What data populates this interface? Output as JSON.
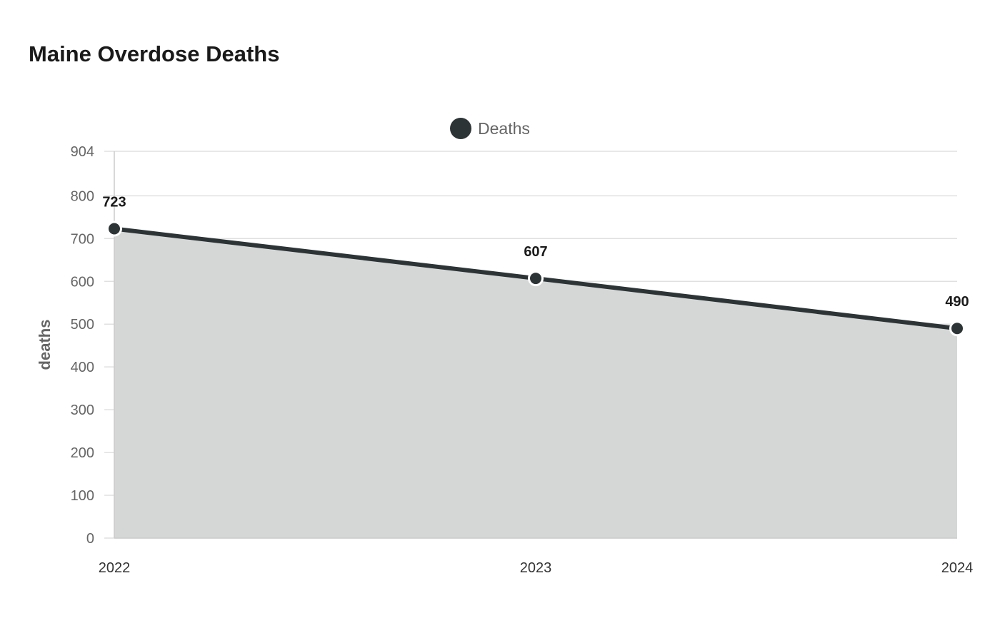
{
  "chart_data": {
    "type": "area",
    "title": "Maine Overdose Deaths",
    "xlabel": "",
    "ylabel": "deaths",
    "categories": [
      "2022",
      "2023",
      "2024"
    ],
    "series": [
      {
        "name": "Deaths",
        "values": [
          723,
          607,
          490
        ]
      }
    ],
    "ylim": [
      0,
      904
    ],
    "yticks": [
      0,
      100,
      200,
      300,
      400,
      500,
      600,
      700,
      800,
      904
    ],
    "grid": true,
    "legend_position": "top-center",
    "colors": {
      "line": "#2d3436",
      "fill": "#d5d7d6",
      "grid": "#e0e0e0",
      "marker_stroke": "#ffffff"
    }
  }
}
